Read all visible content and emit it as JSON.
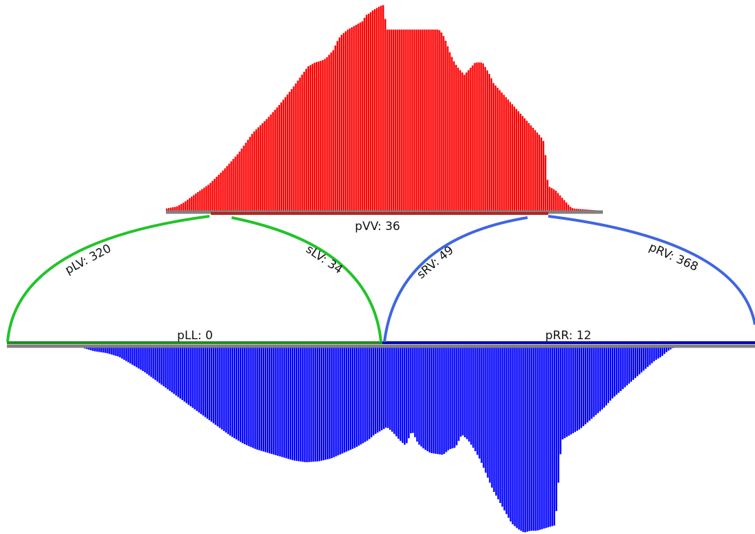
{
  "colors": {
    "top_bars": "#ff0000",
    "bottom_bars": "#0000ff",
    "left_arc": "#22c32a",
    "right_arc": "#3f66e0",
    "baseline": "#808080",
    "left_segment": "#228b22",
    "right_segment": "#0000b8",
    "top_segment": "#b22222"
  },
  "labels": {
    "pVV": "pVV: 36",
    "pLV": "pLV: 320",
    "sLV": "sLV: 34",
    "sRV": "sRV: 49",
    "pRV": "pRV: 368",
    "pLL": "pLL: 0",
    "pRR": "pRR: 12"
  },
  "top_profile": [
    [
      0,
      0.01
    ],
    [
      3,
      0.02
    ],
    [
      5,
      0.04
    ],
    [
      8,
      0.08
    ],
    [
      12,
      0.13
    ],
    [
      16,
      0.2
    ],
    [
      20,
      0.28
    ],
    [
      24,
      0.38
    ],
    [
      28,
      0.45
    ],
    [
      31,
      0.51
    ],
    [
      35,
      0.6
    ],
    [
      39,
      0.7
    ],
    [
      41,
      0.72
    ],
    [
      43,
      0.73
    ],
    [
      44,
      0.74
    ],
    [
      45,
      0.76
    ],
    [
      46,
      0.78
    ],
    [
      47,
      0.82
    ],
    [
      48,
      0.85
    ],
    [
      50,
      0.88
    ],
    [
      51,
      0.89
    ],
    [
      52,
      0.9
    ],
    [
      53,
      0.91
    ],
    [
      54,
      0.92
    ],
    [
      55,
      0.95
    ],
    [
      56,
      0.96
    ],
    [
      57,
      0.975
    ],
    [
      58,
      0.985
    ],
    [
      59,
      0.995
    ],
    [
      60,
      1.0
    ],
    [
      60.5,
      0.88
    ],
    [
      61,
      0.88
    ],
    [
      62,
      0.88
    ],
    [
      63,
      0.88
    ],
    [
      64,
      0.88
    ],
    [
      65,
      0.88
    ],
    [
      66,
      0.88
    ],
    [
      67,
      0.88
    ],
    [
      68,
      0.88
    ],
    [
      69,
      0.88
    ],
    [
      70,
      0.88
    ],
    [
      71,
      0.88
    ],
    [
      72,
      0.88
    ],
    [
      73,
      0.88
    ],
    [
      74,
      0.88
    ],
    [
      75,
      0.88
    ],
    [
      76,
      0.86
    ],
    [
      77,
      0.82
    ],
    [
      78,
      0.77
    ],
    [
      79,
      0.73
    ],
    [
      80,
      0.7
    ],
    [
      81,
      0.68
    ],
    [
      82,
      0.66
    ],
    [
      83,
      0.68
    ],
    [
      84,
      0.7
    ],
    [
      85,
      0.72
    ],
    [
      86,
      0.72
    ],
    [
      87,
      0.72
    ],
    [
      88,
      0.69
    ],
    [
      89,
      0.66
    ],
    [
      90,
      0.62
    ],
    [
      91,
      0.6
    ],
    [
      92,
      0.58
    ],
    [
      93,
      0.56
    ],
    [
      94,
      0.54
    ],
    [
      95,
      0.52
    ],
    [
      96,
      0.5
    ],
    [
      97,
      0.48
    ],
    [
      98,
      0.46
    ],
    [
      99,
      0.44
    ],
    [
      100,
      0.42
    ],
    [
      101,
      0.4
    ],
    [
      102,
      0.38
    ],
    [
      103,
      0.36
    ],
    [
      104,
      0.33
    ],
    [
      105,
      0.12
    ],
    [
      106,
      0.11
    ],
    [
      107,
      0.1
    ],
    [
      108,
      0.08
    ],
    [
      109,
      0.06
    ],
    [
      110,
      0.04
    ],
    [
      111,
      0.02
    ],
    [
      112,
      0.01
    ],
    [
      116,
      0.005
    ],
    [
      120,
      0.0
    ]
  ],
  "bottom_profile": [
    [
      0,
      0.0
    ],
    [
      12,
      0.0
    ],
    [
      14,
      0.02
    ],
    [
      16,
      0.03
    ],
    [
      18,
      0.05
    ],
    [
      20,
      0.09
    ],
    [
      22,
      0.13
    ],
    [
      24,
      0.18
    ],
    [
      26,
      0.23
    ],
    [
      28,
      0.28
    ],
    [
      30,
      0.33
    ],
    [
      32,
      0.38
    ],
    [
      34,
      0.43
    ],
    [
      36,
      0.48
    ],
    [
      38,
      0.52
    ],
    [
      40,
      0.55
    ],
    [
      42,
      0.57
    ],
    [
      44,
      0.59
    ],
    [
      46,
      0.61
    ],
    [
      48,
      0.62
    ],
    [
      50,
      0.615
    ],
    [
      52,
      0.6
    ],
    [
      54,
      0.57
    ],
    [
      56,
      0.54
    ],
    [
      58,
      0.5
    ],
    [
      59,
      0.47
    ],
    [
      60,
      0.45
    ],
    [
      61,
      0.43
    ],
    [
      62,
      0.46
    ],
    [
      63,
      0.5
    ],
    [
      64,
      0.53
    ],
    [
      65,
      0.45
    ],
    [
      66,
      0.52
    ],
    [
      67,
      0.55
    ],
    [
      68,
      0.57
    ],
    [
      70,
      0.58
    ],
    [
      71,
      0.55
    ],
    [
      72,
      0.54
    ],
    [
      73,
      0.47
    ],
    [
      74,
      0.5
    ],
    [
      75,
      0.55
    ],
    [
      76,
      0.61
    ],
    [
      77,
      0.69
    ],
    [
      78,
      0.77
    ],
    [
      79,
      0.83
    ],
    [
      80,
      0.89
    ],
    [
      81,
      0.95
    ],
    [
      82,
      0.98
    ],
    [
      83,
      1.0
    ],
    [
      84,
      0.99
    ],
    [
      85,
      0.99
    ],
    [
      86,
      0.98
    ],
    [
      87,
      0.97
    ],
    [
      88,
      0.96
    ],
    [
      89,
      0.5
    ],
    [
      90,
      0.48
    ],
    [
      91,
      0.46
    ],
    [
      92,
      0.44
    ],
    [
      93,
      0.41
    ],
    [
      94,
      0.38
    ],
    [
      95,
      0.35
    ],
    [
      96,
      0.32
    ],
    [
      97,
      0.28
    ],
    [
      98,
      0.25
    ],
    [
      99,
      0.22
    ],
    [
      100,
      0.19
    ],
    [
      101,
      0.16
    ],
    [
      102,
      0.13
    ],
    [
      103,
      0.1
    ],
    [
      104,
      0.07
    ],
    [
      105,
      0.05
    ],
    [
      106,
      0.02
    ],
    [
      107,
      0.0
    ],
    [
      120,
      0.0
    ]
  ]
}
